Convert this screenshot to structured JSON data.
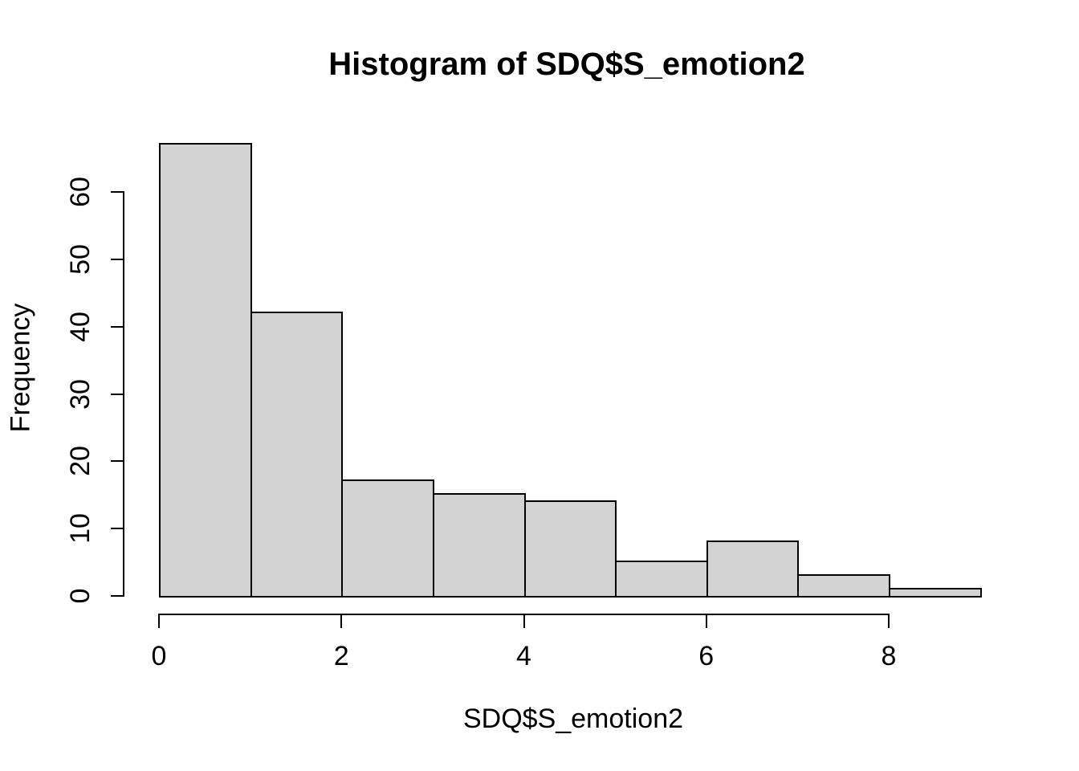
{
  "chart_data": {
    "type": "bar",
    "subtype": "histogram",
    "title": "Histogram of SDQ$S_emotion2",
    "xlabel": "SDQ$S_emotion2",
    "ylabel": "Frequency",
    "breaks": [
      0,
      1,
      2,
      3,
      4,
      5,
      6,
      7,
      8,
      9
    ],
    "counts": [
      67,
      42,
      17,
      15,
      14,
      5,
      8,
      3,
      1
    ],
    "x_ticks": [
      0,
      2,
      4,
      6,
      8
    ],
    "y_ticks": [
      0,
      10,
      20,
      30,
      40,
      50,
      60
    ],
    "xlim": [
      0,
      9
    ],
    "ylim": [
      0,
      67
    ],
    "grid": false,
    "legend": null,
    "colors": {
      "bar_fill": "#d3d3d3",
      "bar_border": "#000000",
      "axis": "#000000",
      "text": "#000000",
      "background": "#ffffff"
    }
  }
}
